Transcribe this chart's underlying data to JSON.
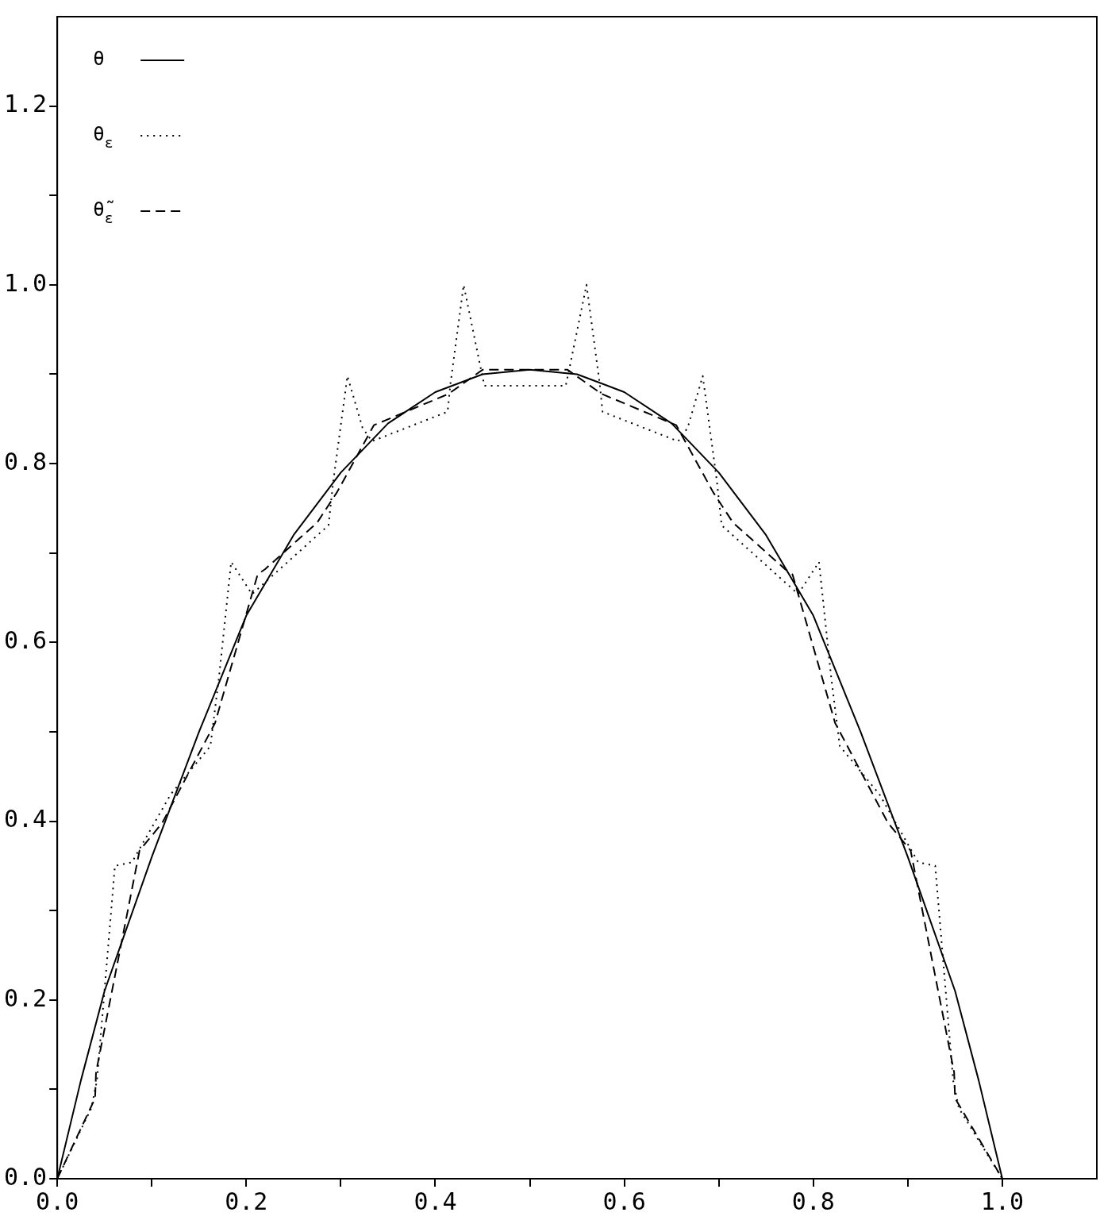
{
  "chart_data": {
    "type": "line",
    "xlim": [
      0,
      1.1
    ],
    "ylim": [
      0,
      1.3
    ],
    "xticks": [
      {
        "value": 0,
        "label": "0.0"
      },
      {
        "value": 0.1,
        "label": null
      },
      {
        "value": 0.2,
        "label": "0.2"
      },
      {
        "value": 0.3,
        "label": null
      },
      {
        "value": 0.4,
        "label": "0.4"
      },
      {
        "value": 0.5,
        "label": null
      },
      {
        "value": 0.6,
        "label": "0.6"
      },
      {
        "value": 0.7,
        "label": null
      },
      {
        "value": 0.8,
        "label": "0.8"
      },
      {
        "value": 0.9,
        "label": null
      },
      {
        "value": 1,
        "label": "1.0"
      }
    ],
    "yticks": [
      {
        "value": 0,
        "label": "0.0"
      },
      {
        "value": 0.1,
        "label": null
      },
      {
        "value": 0.2,
        "label": "0.2"
      },
      {
        "value": 0.3,
        "label": null
      },
      {
        "value": 0.4,
        "label": "0.4"
      },
      {
        "value": 0.5,
        "label": null
      },
      {
        "value": 0.6,
        "label": "0.6"
      },
      {
        "value": 0.7,
        "label": null
      },
      {
        "value": 0.8,
        "label": "0.8"
      },
      {
        "value": 0.9,
        "label": null
      },
      {
        "value": 1,
        "label": "1.0"
      },
      {
        "value": 1.1,
        "label": null
      },
      {
        "value": 1.2,
        "label": "1.2"
      }
    ],
    "grid": false,
    "legend": "top left",
    "marker": "none",
    "series": [
      {
        "name": "θ",
        "color": "#000000",
        "line_style": "solid",
        "x": [
          0,
          0.025,
          0.05,
          0.1,
          0.15,
          0.2,
          0.25,
          0.3,
          0.35,
          0.4,
          0.45,
          0.5,
          0.55,
          0.6,
          0.65,
          0.7,
          0.75,
          0.8,
          0.85,
          0.9,
          0.95,
          0.975,
          1
        ],
        "values": [
          0,
          0.11,
          0.21,
          0.36,
          0.5,
          0.63,
          0.72,
          0.79,
          0.845,
          0.88,
          0.9,
          0.905,
          0.9,
          0.88,
          0.845,
          0.79,
          0.72,
          0.63,
          0.5,
          0.36,
          0.21,
          0.11,
          0
        ]
      },
      {
        "name": "θ$_{ε}$",
        "color": "#000000",
        "line_style": "dotted",
        "x": [
          0,
          0.036,
          0.042,
          0.061,
          0.079,
          0.12,
          0.162,
          0.171,
          0.184,
          0.206,
          0.287,
          0.292,
          0.307,
          0.323,
          0.333,
          0.413,
          0.416,
          0.43,
          0.448,
          0.452,
          0.538,
          0.542,
          0.56,
          0.574,
          0.577,
          0.657,
          0.667,
          0.683,
          0.698,
          0.703,
          0.784,
          0.806,
          0.819,
          0.828,
          0.87,
          0.911,
          0.929,
          0.948,
          0.954,
          1
        ],
        "values": [
          0,
          0.079,
          0.11,
          0.35,
          0.354,
          0.43,
          0.484,
          0.56,
          0.69,
          0.654,
          0.731,
          0.78,
          0.898,
          0.84,
          0.825,
          0.858,
          0.889,
          1.0,
          0.907,
          0.887,
          0.887,
          0.907,
          1.0,
          0.889,
          0.858,
          0.825,
          0.84,
          0.898,
          0.78,
          0.731,
          0.654,
          0.69,
          0.56,
          0.484,
          0.43,
          0.354,
          0.35,
          0.11,
          0.079,
          0
        ]
      },
      {
        "name": "θ̃$_{ε}$",
        "color": "#000000",
        "line_style": "dashed",
        "x": [
          0,
          0.04,
          0.041,
          0.087,
          0.111,
          0.167,
          0.212,
          0.22,
          0.275,
          0.296,
          0.335,
          0.414,
          0.45,
          0.495,
          0.54,
          0.576,
          0.655,
          0.694,
          0.715,
          0.77,
          0.778,
          0.823,
          0.879,
          0.903,
          0.949,
          0.95,
          1
        ],
        "values": [
          0,
          0.09,
          0.119,
          0.367,
          0.398,
          0.51,
          0.676,
          0.682,
          0.734,
          0.768,
          0.843,
          0.878,
          0.905,
          0.905,
          0.905,
          0.878,
          0.843,
          0.768,
          0.734,
          0.682,
          0.676,
          0.51,
          0.398,
          0.367,
          0.119,
          0.09,
          0
        ]
      }
    ]
  }
}
